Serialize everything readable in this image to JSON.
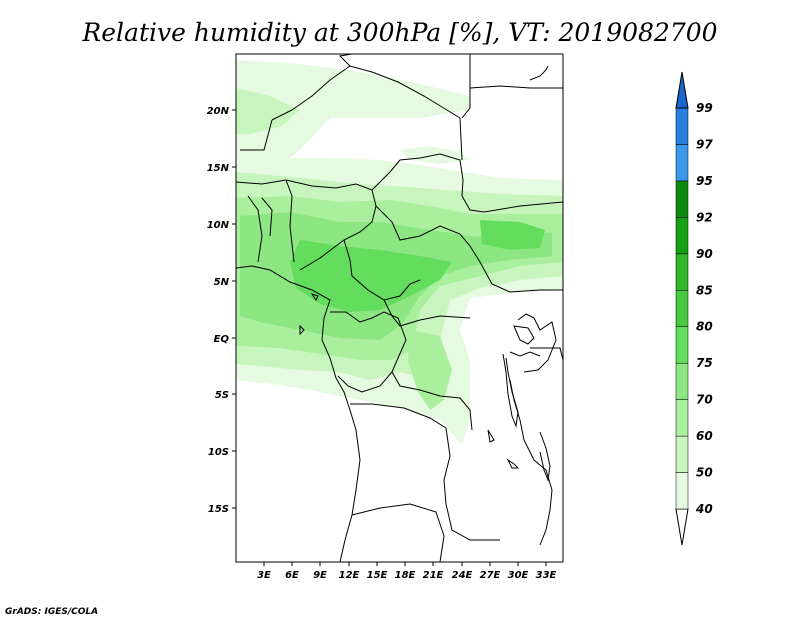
{
  "title": "Relative humidity at 300hPa [%], VT: 2019082700",
  "credit": "GrADS: IGES/COLA",
  "lat_labels": [
    "20N",
    "15N",
    "10N",
    "5N",
    "EQ",
    "5S",
    "10S",
    "15S"
  ],
  "lon_labels": [
    "3E",
    "6E",
    "9E",
    "12E",
    "15E",
    "18E",
    "21E",
    "24E",
    "27E",
    "30E",
    "33E"
  ],
  "colorbar": {
    "labels": [
      "40",
      "50",
      "60",
      "70",
      "75",
      "80",
      "85",
      "90",
      "92",
      "95",
      "97",
      "99"
    ],
    "colors": [
      "#ffffff",
      "#e6fae1",
      "#c8f4be",
      "#aaef9d",
      "#8ce682",
      "#64dc5e",
      "#48c940",
      "#2eb82a",
      "#15a015",
      "#0c8a0c",
      "#3c98ea",
      "#2a7ee0",
      "#1a66cc"
    ]
  }
}
